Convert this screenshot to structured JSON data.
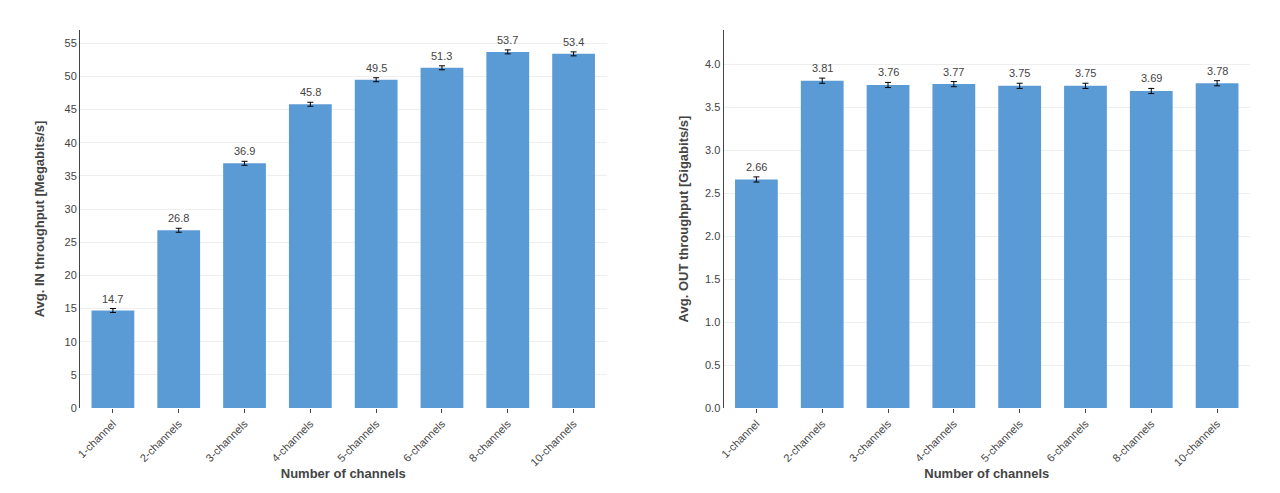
{
  "chart_data": [
    {
      "type": "bar",
      "categories": [
        "1-channel",
        "2-channels",
        "3-channels",
        "4-channels",
        "5-channels",
        "6-channels",
        "8-channels",
        "10-channels"
      ],
      "values": [
        14.7,
        26.8,
        36.9,
        45.8,
        49.5,
        51.3,
        53.7,
        53.4
      ],
      "errors": [
        0.3,
        0.3,
        0.3,
        0.3,
        0.3,
        0.3,
        0.3,
        0.3
      ],
      "color": "#5B9BD5",
      "xlabel": "Number of channels",
      "ylabel": "Avg. IN throughput [Megabits/s]",
      "ylim": [
        0,
        57
      ],
      "yticks": [
        0,
        5,
        10,
        15,
        20,
        25,
        30,
        35,
        40,
        45,
        50,
        55
      ],
      "grid": true,
      "data_labels": true
    },
    {
      "type": "bar",
      "categories": [
        "1-channel",
        "2-channels",
        "3-channels",
        "4-channels",
        "5-channels",
        "6-channels",
        "8-channels",
        "10-channels"
      ],
      "values": [
        2.66,
        3.81,
        3.76,
        3.77,
        3.75,
        3.75,
        3.69,
        3.78
      ],
      "errors": [
        0.03,
        0.03,
        0.03,
        0.03,
        0.03,
        0.03,
        0.03,
        0.03
      ],
      "color": "#5B9BD5",
      "xlabel": "Number of channels",
      "ylabel": "Avg. OUT throughput [Gigabits/s]",
      "ylim": [
        0,
        4.4
      ],
      "yticks": [
        {
          "value": 0,
          "label": "0.0"
        },
        0.5,
        {
          "value": 1,
          "label": "1.0"
        },
        1.5,
        {
          "value": 2,
          "label": "2.0"
        },
        2.5,
        {
          "value": 3,
          "label": "3.0"
        },
        3.5,
        {
          "value": 4,
          "label": "4.0"
        }
      ],
      "grid": true,
      "data_labels": true
    }
  ]
}
